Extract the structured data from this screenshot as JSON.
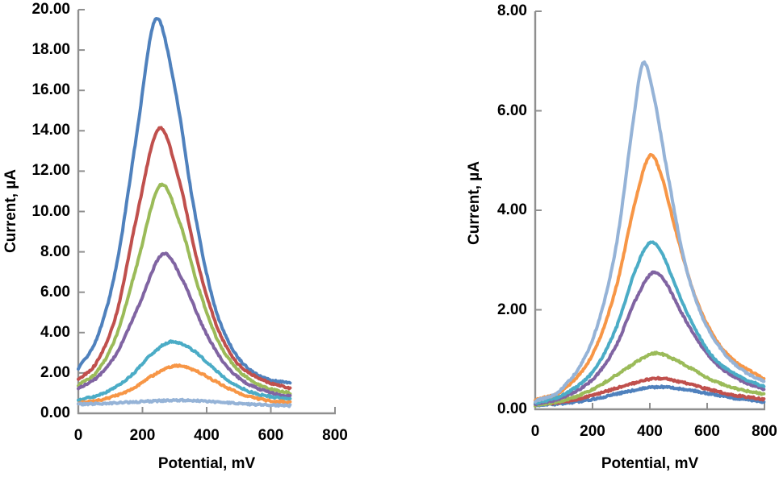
{
  "background": "#ffffff",
  "axis_color": "#8f8f8f",
  "text_color": "#000000",
  "chart_data": [
    {
      "type": "line",
      "position": "left",
      "title": "",
      "xlabel": "Potential, mV",
      "ylabel": "Current, µA",
      "xlim": [
        0,
        800
      ],
      "ylim": [
        0,
        20
      ],
      "x_data_max": 660,
      "grid": false,
      "legend": "none",
      "x_ticks": [
        0,
        200,
        400,
        600,
        800
      ],
      "x_tick_labels": [
        "0",
        "200",
        "400",
        "600",
        "800"
      ],
      "y_ticks": [
        0,
        2,
        4,
        6,
        8,
        10,
        12,
        14,
        16,
        18,
        20
      ],
      "y_tick_labels": [
        "0.00",
        "2.00",
        "4.00",
        "6.00",
        "8.00",
        "10.00",
        "12.00",
        "14.00",
        "16.00",
        "18.00",
        "20.00"
      ],
      "series": [
        {
          "name": "blue",
          "color": "#4F81BD",
          "peak_mV": 240,
          "peak_uA": 19.5,
          "points": [
            [
              0,
              2.2
            ],
            [
              60,
              3.8
            ],
            [
              120,
              7.4
            ],
            [
              180,
              13.6
            ],
            [
              240,
              19.5
            ],
            [
              300,
              16.2
            ],
            [
              360,
              10.2
            ],
            [
              420,
              5.6
            ],
            [
              480,
              3.2
            ],
            [
              540,
              2.1
            ],
            [
              600,
              1.65
            ],
            [
              660,
              1.5
            ]
          ]
        },
        {
          "name": "red",
          "color": "#C0504D",
          "peak_mV": 250,
          "peak_uA": 14.1,
          "points": [
            [
              0,
              1.65
            ],
            [
              60,
              2.6
            ],
            [
              120,
              5.0
            ],
            [
              180,
              9.6
            ],
            [
              250,
              14.1
            ],
            [
              310,
              11.8
            ],
            [
              370,
              7.6
            ],
            [
              430,
              4.4
            ],
            [
              490,
              2.6
            ],
            [
              550,
              1.85
            ],
            [
              600,
              1.5
            ],
            [
              660,
              1.25
            ]
          ]
        },
        {
          "name": "green",
          "color": "#9BBB59",
          "peak_mV": 255,
          "peak_uA": 11.3,
          "points": [
            [
              0,
              1.4
            ],
            [
              60,
              2.1
            ],
            [
              120,
              3.9
            ],
            [
              180,
              7.2
            ],
            [
              255,
              11.3
            ],
            [
              315,
              9.5
            ],
            [
              375,
              6.2
            ],
            [
              435,
              3.6
            ],
            [
              495,
              2.2
            ],
            [
              555,
              1.5
            ],
            [
              600,
              1.2
            ],
            [
              660,
              1.0
            ]
          ]
        },
        {
          "name": "purple",
          "color": "#8064A2",
          "peak_mV": 263,
          "peak_uA": 7.9,
          "points": [
            [
              0,
              1.25
            ],
            [
              60,
              1.8
            ],
            [
              120,
              3.0
            ],
            [
              190,
              5.4
            ],
            [
              263,
              7.9
            ],
            [
              325,
              6.6
            ],
            [
              385,
              4.4
            ],
            [
              445,
              2.7
            ],
            [
              505,
              1.7
            ],
            [
              565,
              1.2
            ],
            [
              620,
              0.95
            ],
            [
              660,
              0.85
            ]
          ]
        },
        {
          "name": "teal",
          "color": "#4BACC6",
          "peak_mV": 290,
          "peak_uA": 3.55,
          "points": [
            [
              0,
              0.65
            ],
            [
              80,
              1.0
            ],
            [
              160,
              1.8
            ],
            [
              230,
              2.95
            ],
            [
              290,
              3.55
            ],
            [
              350,
              3.2
            ],
            [
              410,
              2.4
            ],
            [
              470,
              1.6
            ],
            [
              530,
              1.1
            ],
            [
              590,
              0.85
            ],
            [
              660,
              0.72
            ]
          ]
        },
        {
          "name": "orange",
          "color": "#F79646",
          "peak_mV": 300,
          "peak_uA": 2.35,
          "points": [
            [
              0,
              0.5
            ],
            [
              80,
              0.7
            ],
            [
              160,
              1.15
            ],
            [
              230,
              1.85
            ],
            [
              300,
              2.35
            ],
            [
              360,
              2.15
            ],
            [
              420,
              1.65
            ],
            [
              480,
              1.15
            ],
            [
              540,
              0.8
            ],
            [
              600,
              0.62
            ],
            [
              660,
              0.55
            ]
          ]
        },
        {
          "name": "light-blue",
          "color": "#95B3D7",
          "peak_mV": 300,
          "peak_uA": 0.65,
          "points": [
            [
              0,
              0.45
            ],
            [
              100,
              0.5
            ],
            [
              200,
              0.58
            ],
            [
              300,
              0.65
            ],
            [
              400,
              0.6
            ],
            [
              500,
              0.48
            ],
            [
              580,
              0.42
            ],
            [
              660,
              0.38
            ]
          ]
        }
      ]
    },
    {
      "type": "line",
      "position": "right",
      "title": "",
      "xlabel": "Potential, mV",
      "ylabel": "Current, µA",
      "xlim": [
        0,
        800
      ],
      "ylim": [
        0,
        8
      ],
      "x_data_max": 800,
      "grid": false,
      "legend": "none",
      "x_ticks": [
        0,
        200,
        400,
        600,
        800
      ],
      "x_tick_labels": [
        "0",
        "200",
        "400",
        "600",
        "800"
      ],
      "y_ticks": [
        0,
        2,
        4,
        6,
        8
      ],
      "y_tick_labels": [
        "0.00",
        "2.00",
        "4.00",
        "6.00",
        "8.00"
      ],
      "series": [
        {
          "name": "blue",
          "color": "#4F81BD",
          "peak_mV": 425,
          "peak_uA": 0.45,
          "points": [
            [
              0,
              0.08
            ],
            [
              100,
              0.12
            ],
            [
              200,
              0.2
            ],
            [
              300,
              0.33
            ],
            [
              425,
              0.45
            ],
            [
              520,
              0.4
            ],
            [
              600,
              0.32
            ],
            [
              700,
              0.22
            ],
            [
              800,
              0.15
            ]
          ]
        },
        {
          "name": "red",
          "color": "#C0504D",
          "peak_mV": 420,
          "peak_uA": 0.62,
          "points": [
            [
              0,
              0.1
            ],
            [
              100,
              0.15
            ],
            [
              200,
              0.28
            ],
            [
              300,
              0.45
            ],
            [
              420,
              0.62
            ],
            [
              500,
              0.56
            ],
            [
              580,
              0.44
            ],
            [
              680,
              0.3
            ],
            [
              800,
              0.2
            ]
          ]
        },
        {
          "name": "green",
          "color": "#9BBB59",
          "peak_mV": 412,
          "peak_uA": 1.12,
          "points": [
            [
              0,
              0.08
            ],
            [
              100,
              0.18
            ],
            [
              200,
              0.4
            ],
            [
              300,
              0.75
            ],
            [
              412,
              1.12
            ],
            [
              480,
              1.02
            ],
            [
              550,
              0.8
            ],
            [
              620,
              0.58
            ],
            [
              700,
              0.42
            ],
            [
              800,
              0.3
            ]
          ]
        },
        {
          "name": "purple",
          "color": "#8064A2",
          "peak_mV": 410,
          "peak_uA": 2.75,
          "points": [
            [
              0,
              0.1
            ],
            [
              100,
              0.25
            ],
            [
              200,
              0.6
            ],
            [
              280,
              1.25
            ],
            [
              350,
              2.2
            ],
            [
              410,
              2.75
            ],
            [
              455,
              2.55
            ],
            [
              505,
              2.0
            ],
            [
              565,
              1.4
            ],
            [
              635,
              0.9
            ],
            [
              710,
              0.6
            ],
            [
              800,
              0.4
            ]
          ]
        },
        {
          "name": "teal",
          "color": "#4BACC6",
          "peak_mV": 400,
          "peak_uA": 3.35,
          "points": [
            [
              0,
              0.12
            ],
            [
              100,
              0.3
            ],
            [
              200,
              0.75
            ],
            [
              280,
              1.6
            ],
            [
              350,
              2.8
            ],
            [
              400,
              3.35
            ],
            [
              445,
              3.1
            ],
            [
              495,
              2.4
            ],
            [
              555,
              1.65
            ],
            [
              620,
              1.05
            ],
            [
              700,
              0.7
            ],
            [
              800,
              0.45
            ]
          ]
        },
        {
          "name": "orange",
          "color": "#F79646",
          "peak_mV": 400,
          "peak_uA": 5.1,
          "points": [
            [
              0,
              0.18
            ],
            [
              100,
              0.4
            ],
            [
              200,
              1.1
            ],
            [
              280,
              2.4
            ],
            [
              350,
              4.2
            ],
            [
              400,
              5.1
            ],
            [
              440,
              4.7
            ],
            [
              490,
              3.6
            ],
            [
              550,
              2.4
            ],
            [
              610,
              1.6
            ],
            [
              680,
              1.05
            ],
            [
              800,
              0.6
            ]
          ]
        },
        {
          "name": "light-blue",
          "color": "#95B3D7",
          "peak_mV": 375,
          "peak_uA": 6.95,
          "points": [
            [
              0,
              0.15
            ],
            [
              100,
              0.45
            ],
            [
              200,
              1.4
            ],
            [
              280,
              3.2
            ],
            [
              340,
              5.7
            ],
            [
              375,
              6.95
            ],
            [
              410,
              6.4
            ],
            [
              460,
              4.8
            ],
            [
              520,
              3.0
            ],
            [
              580,
              1.9
            ],
            [
              650,
              1.2
            ],
            [
              720,
              0.8
            ],
            [
              800,
              0.55
            ]
          ]
        }
      ]
    }
  ]
}
